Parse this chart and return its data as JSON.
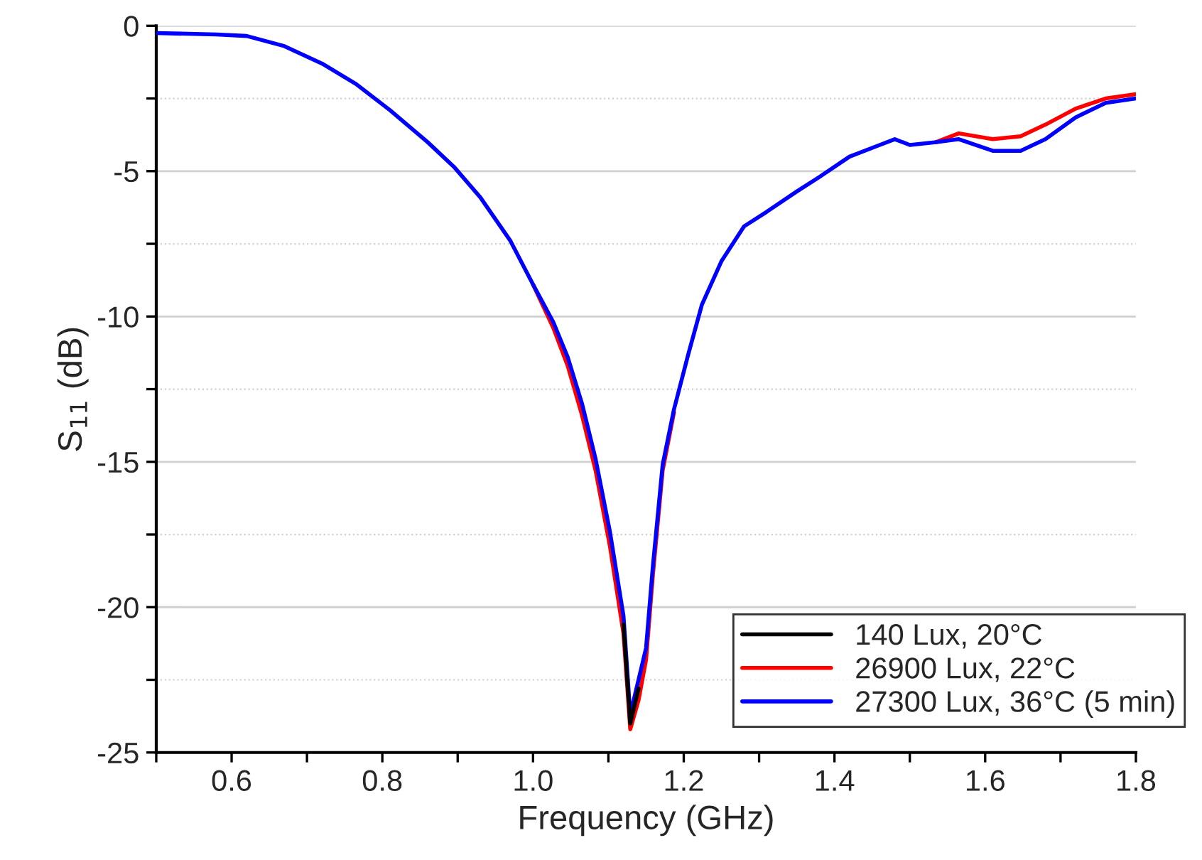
{
  "chart_data": {
    "type": "line",
    "xlabel": "Frequency (GHz)",
    "ylabel": "S$_{11}$ (dB)",
    "xlim": [
      0.5,
      1.8
    ],
    "ylim": [
      -25,
      0
    ],
    "xticks": [
      {
        "value": 0.5,
        "label": null
      },
      0.6,
      {
        "value": 0.7,
        "label": null
      },
      0.8,
      {
        "value": 0.9,
        "label": null
      },
      {
        "value": 1.0,
        "label": "1.0"
      },
      {
        "value": 1.1,
        "label": null
      },
      1.2,
      {
        "value": 1.3,
        "label": null
      },
      1.4,
      {
        "value": 1.5,
        "label": null
      },
      1.6,
      {
        "value": 1.7,
        "label": null
      },
      1.8
    ],
    "yticks": [
      -25,
      {
        "value": -22.5,
        "label": null
      },
      -20,
      {
        "value": -17.5,
        "label": null
      },
      -15,
      {
        "value": -12.5,
        "label": null
      },
      -10,
      {
        "value": -7.5,
        "label": null
      },
      -5,
      {
        "value": -2.5,
        "label": null
      },
      0
    ],
    "grid": "y",
    "legend": "bottom right",
    "line_style": "solid",
    "marker": "none",
    "x": [
      0.5,
      0.58,
      0.62,
      0.67,
      0.72,
      0.765,
      0.81,
      0.86,
      0.895,
      0.93,
      0.97,
      1.0,
      1.027,
      1.046,
      1.065,
      1.083,
      1.102,
      1.12,
      1.129,
      1.14,
      1.15,
      1.159,
      1.172,
      1.187,
      1.206,
      1.224,
      1.25,
      1.28,
      1.31,
      1.35,
      1.38,
      1.42,
      1.46,
      1.48,
      1.5,
      1.535,
      1.565,
      1.61,
      1.647,
      1.68,
      1.72,
      1.76,
      1.8
    ],
    "series": [
      {
        "name": "140 Lux, 20°C",
        "color": "#000000",
        "values": [
          null,
          null,
          null,
          null,
          null,
          null,
          null,
          null,
          null,
          null,
          null,
          null,
          null,
          null,
          null,
          null,
          null,
          -20.6,
          -24.0,
          -22.8,
          null,
          null,
          null,
          null,
          null,
          null,
          null,
          null,
          null,
          null,
          null,
          null,
          null,
          null,
          null,
          null,
          null,
          null,
          null,
          null,
          null,
          null,
          null
        ]
      },
      {
        "name": "26900 Lux, 22°C",
        "color": "#ff0000",
        "values": [
          null,
          null,
          null,
          null,
          null,
          null,
          null,
          null,
          null,
          null,
          null,
          -8.9,
          -10.4,
          -11.7,
          -13.4,
          -15.3,
          -17.9,
          -20.9,
          -24.2,
          -23.2,
          -21.8,
          -18.9,
          -15.3,
          -13.3,
          null,
          null,
          null,
          null,
          null,
          null,
          null,
          null,
          null,
          null,
          null,
          -4.0,
          -3.7,
          -3.9,
          -3.8,
          -3.4,
          -2.85,
          -2.5,
          -2.35
        ]
      },
      {
        "name": "27300 Lux, 36°C (5 min)",
        "color": "#0000ff",
        "values": [
          -0.25,
          -0.3,
          -0.35,
          -0.7,
          -1.3,
          -2.0,
          -2.9,
          -4.0,
          -4.85,
          -5.9,
          -7.4,
          -8.9,
          -10.2,
          -11.4,
          -13.0,
          -14.9,
          -17.4,
          -20.3,
          -23.7,
          -22.5,
          -21.4,
          -18.6,
          -15.1,
          -13.2,
          -11.3,
          -9.6,
          -8.1,
          -6.9,
          -6.4,
          -5.7,
          -5.2,
          -4.5,
          -4.1,
          -3.9,
          -4.1,
          -4.0,
          -3.9,
          -4.3,
          -4.3,
          -3.9,
          -3.15,
          -2.65,
          -2.5
        ]
      }
    ]
  }
}
